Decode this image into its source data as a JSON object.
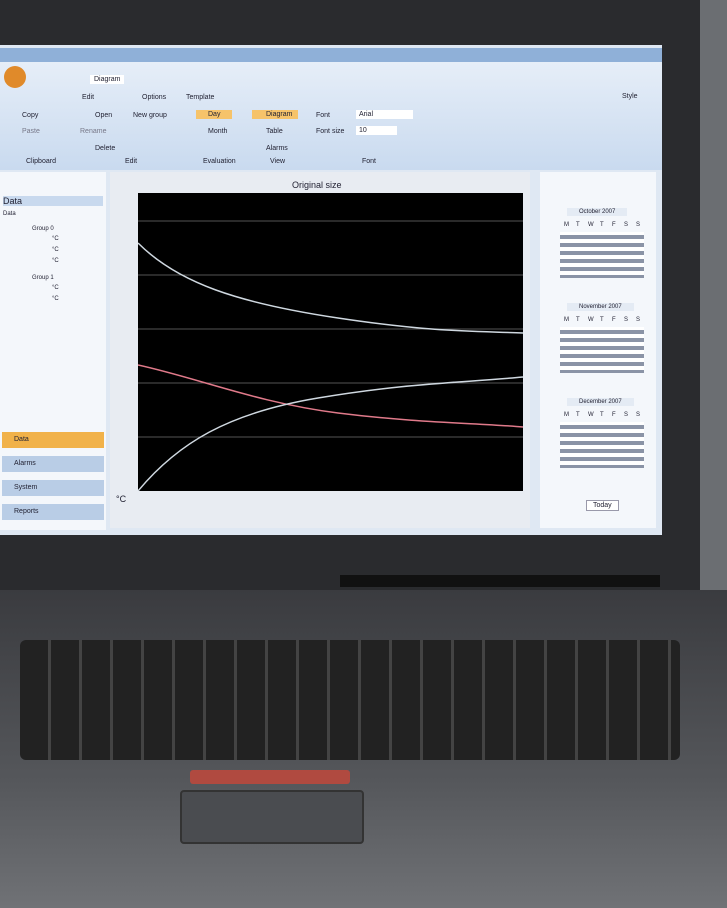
{
  "ribbon": {
    "tab": "Diagram",
    "menu": [
      "Edit",
      "Options",
      "Template"
    ],
    "style": "Style",
    "clipboard": {
      "copy": "Copy",
      "paste": "Paste",
      "label": "Clipboard"
    },
    "edit": {
      "open": "Open",
      "new_group": "New group",
      "rename": "Rename",
      "delete": "Delete",
      "label": "Edit"
    },
    "evaluation": {
      "day": "Day",
      "month": "Month",
      "label": "Evaluation"
    },
    "view": {
      "diagram": "Diagram",
      "table": "Table",
      "alarms": "Alarms",
      "label": "View"
    },
    "font": {
      "font": "Font",
      "font_value": "Arial",
      "size": "Font size",
      "size_value": "10",
      "label": "Font"
    }
  },
  "left_panel": {
    "title": "Data",
    "header": "Data",
    "groups": [
      {
        "name": "Group 0",
        "units": [
          "°C",
          "°C",
          "°C"
        ]
      },
      {
        "name": "Group 1",
        "units": [
          "°C",
          "°C"
        ]
      }
    ],
    "nav": [
      "Data",
      "Alarms",
      "System",
      "Reports"
    ]
  },
  "chart_panel": {
    "title": "Original size",
    "unit": "°C"
  },
  "calendars": [
    {
      "month": "October 2007",
      "weekdays": [
        "M",
        "T",
        "W",
        "T",
        "F",
        "S",
        "S"
      ]
    },
    {
      "month": "November 2007",
      "weekdays": [
        "M",
        "T",
        "W",
        "T",
        "F",
        "S",
        "S"
      ]
    },
    {
      "month": "December 2007",
      "weekdays": [
        "M",
        "T",
        "W",
        "T",
        "F",
        "S",
        "S"
      ]
    }
  ],
  "today": "Today"
}
